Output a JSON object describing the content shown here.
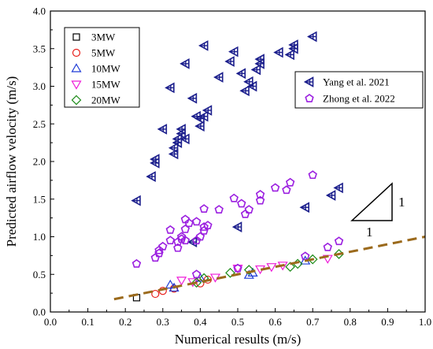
{
  "chart_data": {
    "type": "scatter",
    "xlabel": "Numerical results (m/s)",
    "ylabel": "Predicted airflow velocity (m/s)",
    "xlim": [
      0.0,
      1.0
    ],
    "ylim": [
      0.0,
      4.0
    ],
    "x_ticks": [
      "0.0",
      "0.1",
      "0.2",
      "0.3",
      "0.4",
      "0.5",
      "0.6",
      "0.7",
      "0.8",
      "0.9",
      "1.0"
    ],
    "y_ticks": [
      "0.0",
      "0.5",
      "1.0",
      "1.5",
      "2.0",
      "2.5",
      "3.0",
      "3.5",
      "4.0"
    ],
    "grid": false,
    "series": [
      {
        "name": "3MW",
        "marker": "square",
        "color": "#000000",
        "points": [
          [
            0.23,
            0.19
          ]
        ]
      },
      {
        "name": "5MW",
        "marker": "circle",
        "color": "#e8201c",
        "points": [
          [
            0.28,
            0.24
          ],
          [
            0.3,
            0.28
          ],
          [
            0.33,
            0.31
          ],
          [
            0.4,
            0.38
          ],
          [
            0.42,
            0.43
          ]
        ]
      },
      {
        "name": "10MW",
        "marker": "triangle-up",
        "color": "#1f3bd6",
        "points": [
          [
            0.32,
            0.36
          ],
          [
            0.33,
            0.32
          ],
          [
            0.4,
            0.45
          ],
          [
            0.53,
            0.49
          ],
          [
            0.54,
            0.52
          ],
          [
            0.68,
            0.68
          ]
        ]
      },
      {
        "name": "15MW",
        "marker": "triangle-down",
        "color": "#ee1cd8",
        "points": [
          [
            0.35,
            0.42
          ],
          [
            0.38,
            0.4
          ],
          [
            0.44,
            0.46
          ],
          [
            0.5,
            0.58
          ],
          [
            0.56,
            0.57
          ],
          [
            0.59,
            0.6
          ],
          [
            0.62,
            0.62
          ],
          [
            0.74,
            0.71
          ]
        ]
      },
      {
        "name": "20MW",
        "marker": "diamond",
        "color": "#1a8a16",
        "points": [
          [
            0.39,
            0.39
          ],
          [
            0.41,
            0.45
          ],
          [
            0.48,
            0.52
          ],
          [
            0.53,
            0.56
          ],
          [
            0.64,
            0.6
          ],
          [
            0.66,
            0.64
          ],
          [
            0.7,
            0.7
          ],
          [
            0.77,
            0.77
          ]
        ]
      },
      {
        "name": "Yang et al. 2021",
        "marker": "left-triangle-cross",
        "color": "#1b1e8c",
        "points": [
          [
            0.23,
            1.48
          ],
          [
            0.27,
            1.8
          ],
          [
            0.28,
            1.98
          ],
          [
            0.28,
            2.03
          ],
          [
            0.3,
            2.43
          ],
          [
            0.32,
            2.98
          ],
          [
            0.33,
            2.1
          ],
          [
            0.33,
            2.18
          ],
          [
            0.34,
            2.25
          ],
          [
            0.34,
            2.3
          ],
          [
            0.35,
            2.37
          ],
          [
            0.35,
            2.43
          ],
          [
            0.36,
            2.3
          ],
          [
            0.36,
            3.3
          ],
          [
            0.38,
            2.84
          ],
          [
            0.39,
            2.6
          ],
          [
            0.4,
            2.47
          ],
          [
            0.4,
            2.57
          ],
          [
            0.41,
            2.6
          ],
          [
            0.41,
            3.54
          ],
          [
            0.42,
            2.68
          ],
          [
            0.45,
            3.12
          ],
          [
            0.48,
            3.33
          ],
          [
            0.49,
            3.46
          ],
          [
            0.51,
            3.17
          ],
          [
            0.52,
            2.94
          ],
          [
            0.53,
            3.06
          ],
          [
            0.54,
            3.0
          ],
          [
            0.55,
            3.22
          ],
          [
            0.56,
            3.3
          ],
          [
            0.56,
            3.36
          ],
          [
            0.61,
            3.45
          ],
          [
            0.64,
            3.42
          ],
          [
            0.65,
            3.5
          ],
          [
            0.65,
            3.55
          ],
          [
            0.7,
            3.66
          ],
          [
            0.5,
            1.13
          ],
          [
            0.38,
            0.93
          ],
          [
            0.68,
            1.39
          ],
          [
            0.75,
            1.55
          ],
          [
            0.77,
            1.65
          ]
        ]
      },
      {
        "name": "Zhong et al. 2022",
        "marker": "pentagon",
        "color": "#9b1fe0",
        "points": [
          [
            0.23,
            0.64
          ],
          [
            0.28,
            0.72
          ],
          [
            0.29,
            0.78
          ],
          [
            0.29,
            0.82
          ],
          [
            0.3,
            0.87
          ],
          [
            0.32,
            0.95
          ],
          [
            0.32,
            1.09
          ],
          [
            0.34,
            0.85
          ],
          [
            0.34,
            0.93
          ],
          [
            0.35,
            0.97
          ],
          [
            0.35,
            1.0
          ],
          [
            0.36,
            0.95
          ],
          [
            0.36,
            1.1
          ],
          [
            0.36,
            1.23
          ],
          [
            0.37,
            1.18
          ],
          [
            0.39,
            1.2
          ],
          [
            0.39,
            0.95
          ],
          [
            0.4,
            1.0
          ],
          [
            0.41,
            1.08
          ],
          [
            0.41,
            1.13
          ],
          [
            0.41,
            1.37
          ],
          [
            0.42,
            1.15
          ],
          [
            0.45,
            1.36
          ],
          [
            0.49,
            1.51
          ],
          [
            0.51,
            1.44
          ],
          [
            0.52,
            1.3
          ],
          [
            0.53,
            1.36
          ],
          [
            0.56,
            1.48
          ],
          [
            0.56,
            1.56
          ],
          [
            0.6,
            1.65
          ],
          [
            0.63,
            1.62
          ],
          [
            0.64,
            1.72
          ],
          [
            0.7,
            1.82
          ],
          [
            0.39,
            0.5
          ],
          [
            0.5,
            0.58
          ],
          [
            0.68,
            0.74
          ],
          [
            0.74,
            0.86
          ],
          [
            0.77,
            0.94
          ]
        ]
      }
    ],
    "reference_line": {
      "style": "dashed",
      "color": "#9b6a1c",
      "x": [
        0.17,
        1.0
      ],
      "y": [
        0.17,
        1.0
      ]
    },
    "slope_annotation": {
      "rise_label": "1",
      "run_label": "1"
    },
    "legends": [
      {
        "position": "top-left",
        "entries": [
          "3MW",
          "5MW",
          "10MW",
          "15MW",
          "20MW"
        ]
      },
      {
        "position": "top-right",
        "entries": [
          "Yang et al. 2021",
          "Zhong et al. 2022"
        ]
      }
    ]
  }
}
